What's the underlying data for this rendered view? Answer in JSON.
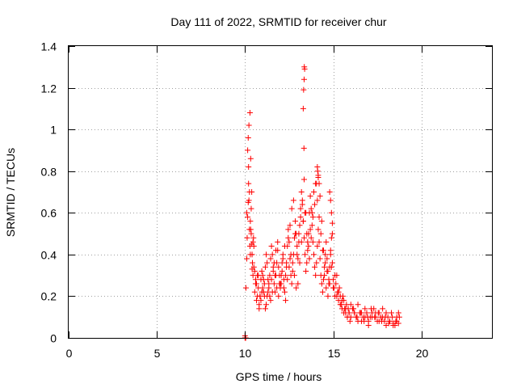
{
  "chart_data": {
    "type": "scatter",
    "title": "Day 111 of 2022, SRMTID for receiver chur",
    "xlabel": "GPS time / hours",
    "ylabel": "SRMTID / TECUs",
    "xlim": [
      0,
      24
    ],
    "ylim": [
      0,
      1.4
    ],
    "xticks": [
      0,
      5,
      10,
      15,
      20
    ],
    "xtick_labels": [
      "0",
      "5",
      "10",
      "15",
      "20"
    ],
    "yticks": [
      0,
      0.2,
      0.4,
      0.6,
      0.8,
      1.0,
      1.2,
      1.4
    ],
    "ytick_labels": [
      "0",
      "0.2",
      "0.4",
      "0.6",
      "0.8",
      "1",
      "1.2",
      "1.4"
    ],
    "grid": true,
    "marker": "plus",
    "color": "#ff0000",
    "series": [
      {
        "name": "SRMTID",
        "x": [
          10.0,
          10.02,
          10.05,
          10.1,
          10.12,
          10.15,
          10.18,
          10.2,
          10.22,
          10.25,
          10.28,
          10.3,
          10.32,
          10.35,
          10.38,
          10.4,
          10.42,
          10.45,
          10.48,
          10.5,
          10.55,
          10.6,
          10.65,
          10.7,
          10.75,
          10.8,
          10.85,
          10.9,
          10.95,
          11.0,
          11.05,
          11.1,
          11.15,
          11.2,
          11.25,
          11.3,
          11.35,
          11.4,
          11.45,
          11.5,
          11.55,
          11.6,
          11.65,
          11.7,
          11.75,
          11.8,
          11.85,
          11.9,
          11.95,
          12.0,
          12.05,
          12.1,
          12.15,
          12.2,
          12.25,
          12.3,
          12.35,
          12.4,
          12.45,
          12.5,
          12.55,
          12.6,
          12.65,
          12.7,
          12.75,
          12.8,
          12.85,
          12.9,
          12.95,
          13.0,
          13.05,
          13.1,
          13.15,
          13.2,
          13.25,
          13.3,
          13.35,
          13.4,
          13.45,
          13.5,
          13.55,
          13.6,
          13.65,
          13.7,
          13.75,
          13.8,
          13.85,
          13.9,
          13.95,
          14.0,
          14.05,
          14.1,
          14.15,
          14.2,
          14.25,
          14.3,
          14.35,
          14.4,
          14.45,
          14.5,
          14.55,
          14.6,
          14.65,
          14.7,
          14.75,
          14.8,
          14.85,
          14.9,
          14.95,
          15.0,
          15.05,
          15.1,
          15.15,
          15.2,
          15.25,
          15.3,
          15.35,
          15.4,
          15.45,
          15.5,
          15.55,
          15.6,
          15.65,
          15.7,
          15.75,
          15.8,
          15.85,
          15.9,
          15.95,
          16.0,
          16.1,
          16.2,
          16.3,
          16.4,
          16.5,
          16.6,
          16.7,
          16.8,
          16.9,
          17.0,
          17.1,
          17.2,
          17.3,
          17.4,
          17.5,
          17.6,
          17.7,
          17.8,
          17.9,
          18.0,
          18.1,
          18.2,
          18.3,
          18.4,
          18.5,
          18.6,
          18.7,
          18.75,
          10.1,
          10.2,
          10.3,
          10.4,
          10.5,
          10.6,
          10.7,
          10.8,
          10.9,
          11.0,
          11.1,
          11.2,
          11.3,
          11.4,
          11.5,
          11.6,
          11.7,
          11.8,
          11.9,
          12.0,
          12.1,
          12.2,
          12.3,
          12.4,
          12.5,
          12.6,
          12.7,
          12.8,
          12.9,
          13.0,
          13.1,
          13.2,
          13.3,
          13.4,
          13.5,
          13.6,
          13.7,
          13.8,
          13.9,
          14.0,
          14.1,
          14.2,
          14.3,
          14.4,
          14.5,
          14.6,
          14.7,
          14.8,
          14.9,
          15.0,
          15.2,
          15.4,
          15.6,
          15.8,
          16.0,
          16.2,
          16.4,
          16.6,
          16.8,
          17.0,
          17.2,
          17.4,
          17.6,
          17.8,
          18.0,
          18.2,
          18.4,
          18.6,
          10.25,
          10.35,
          10.45,
          10.55,
          10.65,
          10.75,
          10.85,
          10.95,
          11.05,
          11.15,
          11.25,
          11.35,
          11.45,
          11.55,
          11.65,
          11.75,
          11.85,
          11.95,
          12.05,
          12.15,
          12.25,
          12.35,
          12.45,
          12.55,
          12.65,
          12.75,
          12.85,
          12.95,
          13.05,
          13.15,
          13.25,
          13.35,
          13.45,
          13.55,
          13.65,
          13.75,
          13.85,
          13.95,
          14.05,
          14.15,
          14.25,
          14.35,
          14.45,
          14.55,
          14.65,
          14.75,
          14.85,
          14.95,
          15.1,
          15.3,
          15.5,
          15.7,
          15.9,
          16.15,
          16.35,
          16.55,
          16.75,
          16.95,
          17.15,
          17.35,
          17.55,
          17.75,
          17.95,
          18.15,
          18.35,
          18.55,
          18.7,
          10.15,
          10.18,
          10.22,
          10.28,
          10.32,
          10.38,
          13.3,
          13.32,
          13.35,
          13.38,
          13.36,
          13.34,
          14.1,
          14.12,
          14.15,
          14.2,
          14.8,
          14.85,
          14.9,
          14.95,
          10.0,
          10.02,
          10.04
        ],
        "y": [
          0.0,
          0.0,
          0.24,
          0.38,
          0.48,
          0.58,
          0.65,
          0.74,
          0.66,
          0.52,
          0.44,
          0.4,
          0.52,
          0.5,
          0.45,
          0.33,
          0.36,
          0.3,
          0.48,
          0.44,
          0.22,
          0.26,
          0.18,
          0.3,
          0.24,
          0.16,
          0.2,
          0.28,
          0.32,
          0.3,
          0.22,
          0.26,
          0.34,
          0.4,
          0.36,
          0.28,
          0.24,
          0.3,
          0.38,
          0.44,
          0.4,
          0.32,
          0.26,
          0.22,
          0.3,
          0.36,
          0.42,
          0.34,
          0.26,
          0.24,
          0.3,
          0.36,
          0.4,
          0.28,
          0.22,
          0.3,
          0.36,
          0.44,
          0.52,
          0.46,
          0.38,
          0.3,
          0.26,
          0.32,
          0.4,
          0.48,
          0.56,
          0.5,
          0.44,
          0.38,
          0.46,
          0.54,
          0.62,
          0.7,
          0.64,
          0.56,
          0.48,
          0.4,
          0.32,
          0.36,
          0.42,
          0.5,
          0.6,
          0.68,
          0.62,
          0.54,
          0.46,
          0.4,
          0.34,
          0.3,
          0.36,
          0.44,
          0.52,
          0.46,
          0.38,
          0.3,
          0.26,
          0.22,
          0.28,
          0.34,
          0.4,
          0.46,
          0.38,
          0.32,
          0.26,
          0.34,
          0.42,
          0.48,
          0.36,
          0.28,
          0.24,
          0.2,
          0.26,
          0.3,
          0.22,
          0.18,
          0.24,
          0.2,
          0.16,
          0.14,
          0.2,
          0.18,
          0.14,
          0.12,
          0.16,
          0.1,
          0.14,
          0.12,
          0.08,
          0.1,
          0.14,
          0.12,
          0.1,
          0.16,
          0.12,
          0.08,
          0.1,
          0.14,
          0.12,
          0.08,
          0.1,
          0.12,
          0.14,
          0.1,
          0.08,
          0.12,
          0.1,
          0.14,
          0.08,
          0.06,
          0.1,
          0.08,
          0.12,
          0.07,
          0.06,
          0.08,
          0.07,
          0.1,
          0.6,
          0.82,
          0.56,
          0.4,
          0.34,
          0.28,
          0.2,
          0.14,
          0.18,
          0.24,
          0.2,
          0.16,
          0.22,
          0.2,
          0.28,
          0.34,
          0.3,
          0.24,
          0.2,
          0.26,
          0.32,
          0.24,
          0.18,
          0.28,
          0.34,
          0.4,
          0.36,
          0.3,
          0.24,
          0.26,
          0.36,
          0.46,
          0.56,
          0.6,
          0.5,
          0.44,
          0.52,
          0.6,
          0.7,
          0.74,
          0.66,
          0.58,
          0.5,
          0.42,
          0.3,
          0.24,
          0.2,
          0.26,
          0.34,
          0.24,
          0.2,
          0.16,
          0.12,
          0.1,
          0.16,
          0.12,
          0.08,
          0.12,
          0.1,
          0.06,
          0.1,
          0.12,
          0.08,
          0.1,
          0.12,
          0.08,
          0.06,
          0.1,
          0.7,
          0.62,
          0.46,
          0.32,
          0.26,
          0.3,
          0.2,
          0.22,
          0.28,
          0.14,
          0.2,
          0.26,
          0.18,
          0.22,
          0.36,
          0.42,
          0.46,
          0.3,
          0.26,
          0.38,
          0.44,
          0.34,
          0.48,
          0.54,
          0.62,
          0.66,
          0.5,
          0.4,
          0.5,
          0.58,
          0.66,
          0.76,
          0.6,
          0.46,
          0.38,
          0.48,
          0.58,
          0.64,
          0.74,
          0.78,
          0.68,
          0.56,
          0.42,
          0.36,
          0.32,
          0.28,
          0.4,
          0.5,
          0.3,
          0.22,
          0.18,
          0.14,
          0.12,
          0.14,
          0.1,
          0.12,
          0.08,
          0.1,
          0.14,
          0.1,
          0.12,
          0.08,
          0.1,
          0.07,
          0.1,
          0.08,
          0.12,
          0.9,
          0.96,
          1.02,
          1.08,
          0.86,
          0.7,
          1.1,
          1.19,
          1.24,
          1.29,
          1.3,
          0.91,
          0.82,
          0.8,
          0.77,
          0.74,
          0.7,
          0.66,
          0.6,
          0.55,
          0.01,
          0.0,
          0.0
        ]
      }
    ]
  }
}
